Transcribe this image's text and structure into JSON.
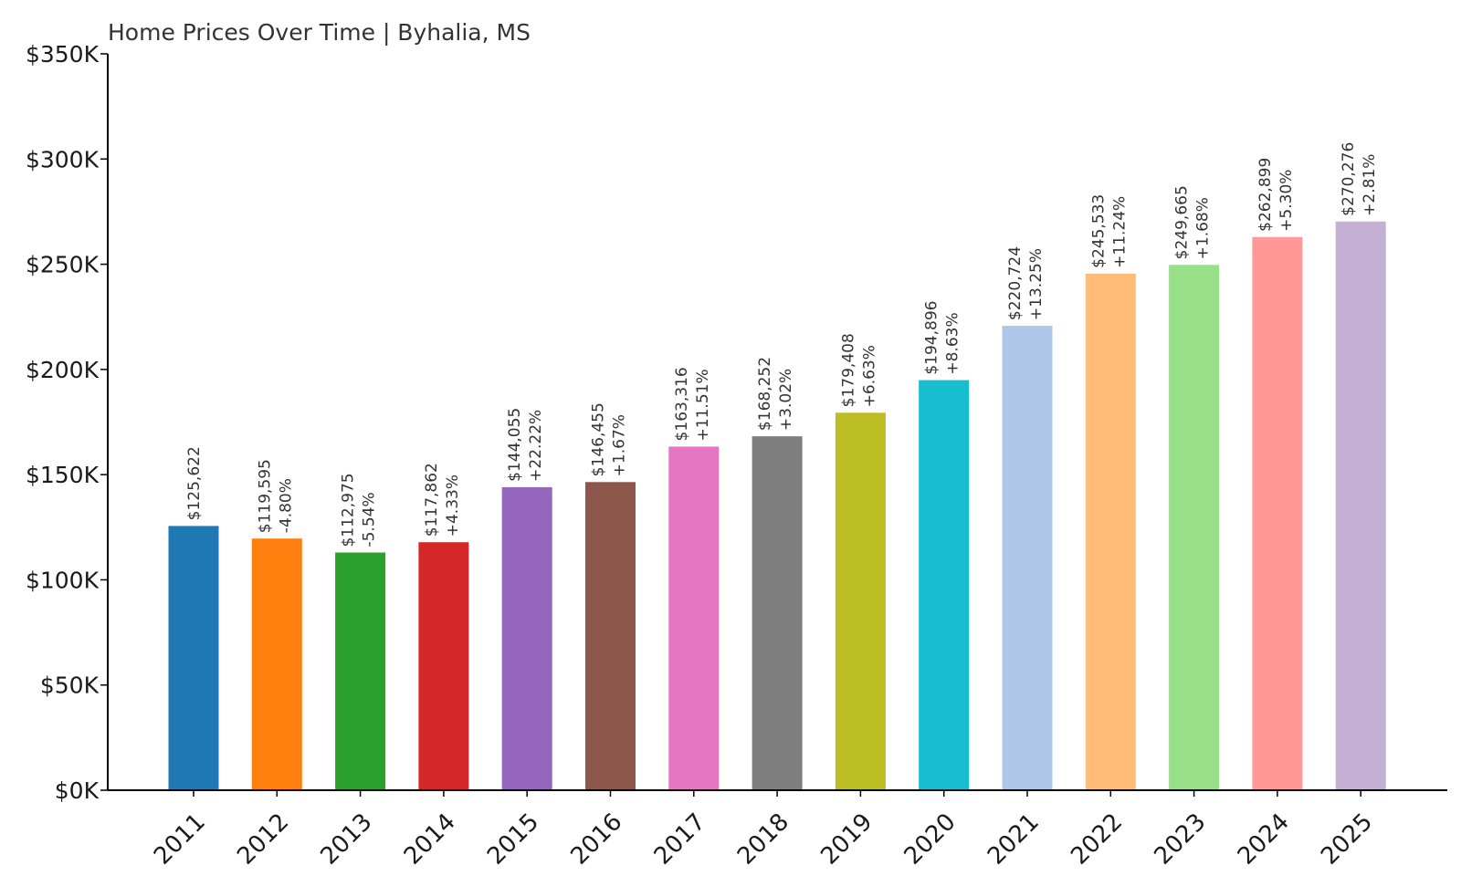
{
  "chart_data": {
    "type": "bar",
    "title": "Home Prices Over Time | Byhalia, MS",
    "xlabel": "",
    "ylabel": "",
    "ylim": [
      0,
      350000
    ],
    "yticks": [
      0,
      50000,
      100000,
      150000,
      200000,
      250000,
      300000,
      350000
    ],
    "ytick_labels": [
      "$0K",
      "$50K",
      "$100K",
      "$150K",
      "$200K",
      "$250K",
      "$300K",
      "$350K"
    ],
    "grid": false,
    "categories": [
      "2011",
      "2012",
      "2013",
      "2014",
      "2015",
      "2016",
      "2017",
      "2018",
      "2019",
      "2020",
      "2021",
      "2022",
      "2023",
      "2024",
      "2025"
    ],
    "values": [
      125622,
      119595,
      112975,
      117862,
      144055,
      146455,
      163316,
      168252,
      179408,
      194896,
      220724,
      245533,
      249665,
      262899,
      270276
    ],
    "value_labels": [
      "$125,622",
      "$119,595",
      "$112,975",
      "$117,862",
      "$144,055",
      "$146,455",
      "$163,316",
      "$168,252",
      "$179,408",
      "$194,896",
      "$220,724",
      "$245,533",
      "$249,665",
      "$262,899",
      "$270,276"
    ],
    "change_labels": [
      "",
      "-4.80%",
      "-5.54%",
      "+4.33%",
      "+22.22%",
      "+1.67%",
      "+11.51%",
      "+3.02%",
      "+6.63%",
      "+8.63%",
      "+13.25%",
      "+11.24%",
      "+1.68%",
      "+5.30%",
      "+2.81%"
    ],
    "colors": [
      "#1f77b4",
      "#ff7f0e",
      "#2ca02c",
      "#d62728",
      "#9467bd",
      "#8c564b",
      "#e377c2",
      "#7f7f7f",
      "#bcbd22",
      "#17becf",
      "#aec7e8",
      "#ffbb78",
      "#98df8a",
      "#ff9896",
      "#c5b0d5"
    ]
  }
}
